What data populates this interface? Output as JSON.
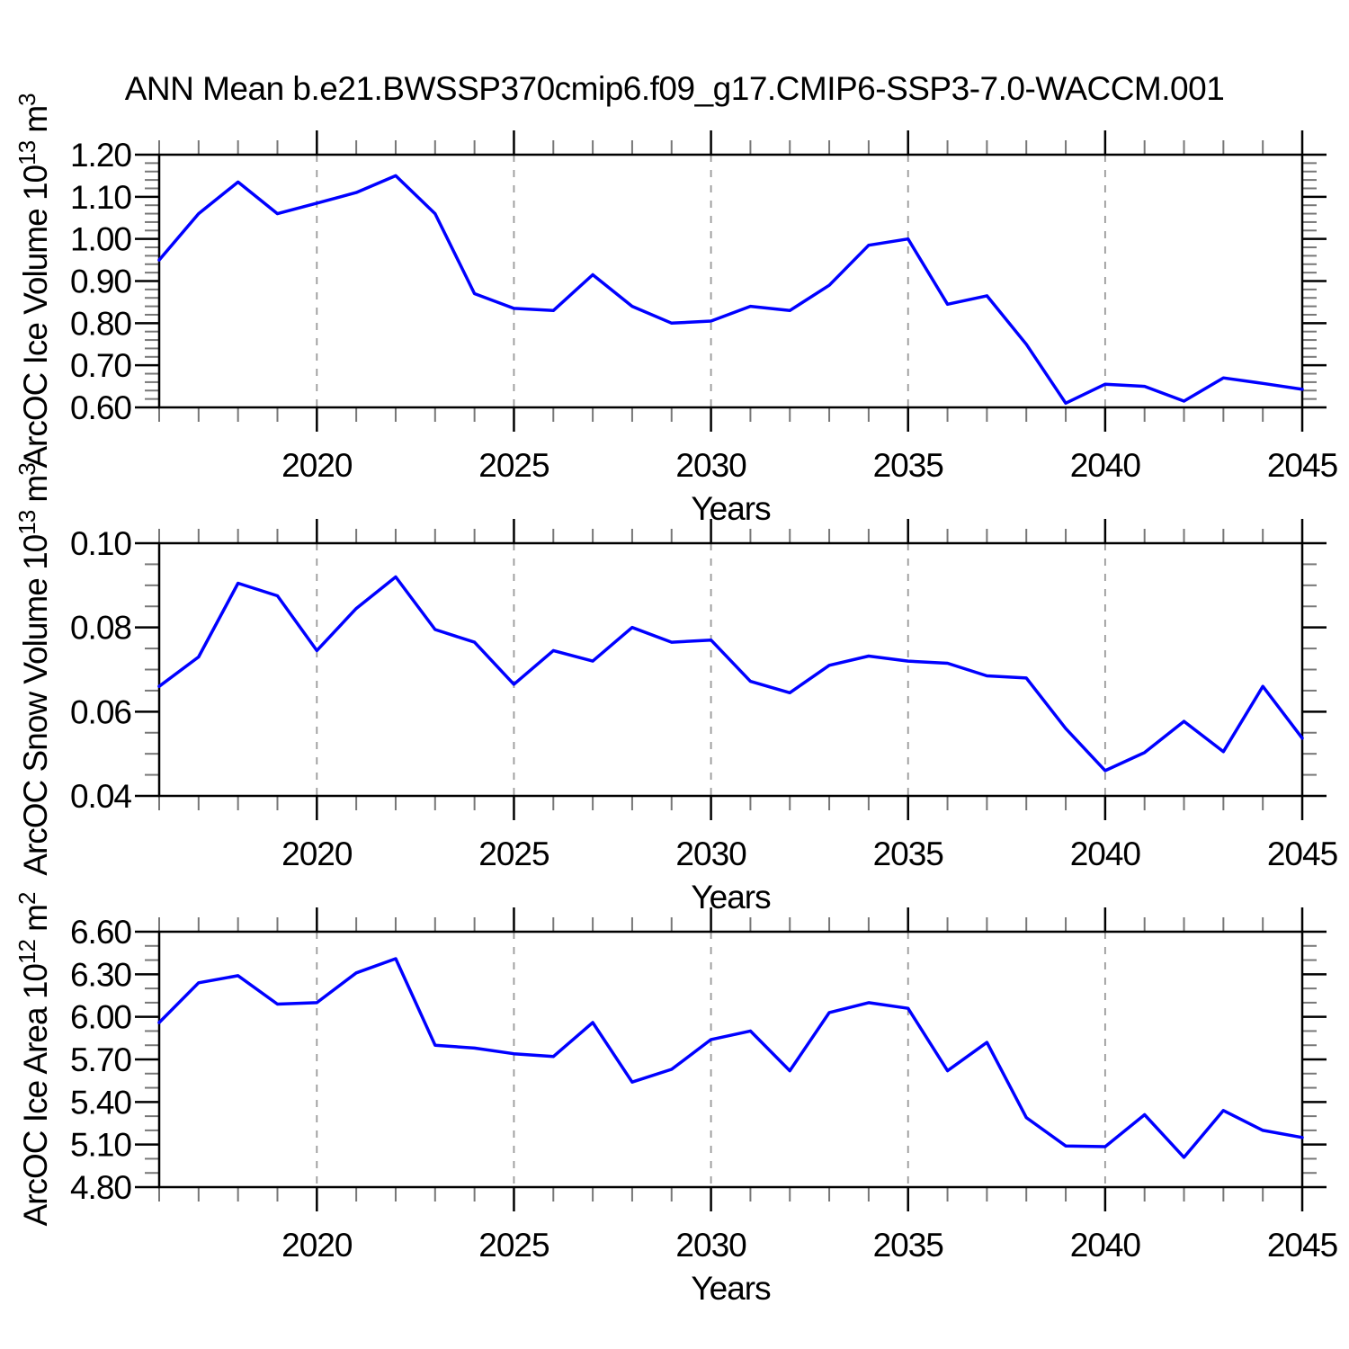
{
  "title": "ANN Mean b.e21.BWSSP370cmip6.f09_g17.CMIP6-SSP3-7.0-WACCM.001",
  "style": {
    "line_color": "#0000ff",
    "axis_color": "#000000",
    "minor_tick_color": "#777777",
    "grid_color": "#999999",
    "background": "#ffffff"
  },
  "x_axis": {
    "label": "Years",
    "range": [
      2016,
      2045
    ],
    "major_ticks": [
      2020,
      2025,
      2030,
      2035,
      2040,
      2045
    ],
    "minor_step": 1,
    "gridlines": [
      2020,
      2025,
      2030,
      2035,
      2040
    ]
  },
  "chart_data": [
    {
      "type": "line",
      "name": "arcoc-ice-volume",
      "xlabel": "Years",
      "ylabel": {
        "text": "ArcOC Ice Volume 10",
        "exp": "13",
        "unit": " m",
        "unit_exp": "3"
      },
      "ylim": [
        0.6,
        1.2
      ],
      "ytick_step": 0.1,
      "yminor_step": 0.02,
      "ytick_decimals": 2,
      "x": [
        2016,
        2017,
        2018,
        2019,
        2020,
        2021,
        2022,
        2023,
        2024,
        2025,
        2026,
        2027,
        2028,
        2029,
        2030,
        2031,
        2032,
        2033,
        2034,
        2035,
        2036,
        2037,
        2038,
        2039,
        2040,
        2041,
        2042,
        2043,
        2044,
        2045
      ],
      "values": [
        0.95,
        1.06,
        1.135,
        1.06,
        1.085,
        1.11,
        1.15,
        1.06,
        0.87,
        0.835,
        0.83,
        0.915,
        0.84,
        0.8,
        0.805,
        0.84,
        0.83,
        0.89,
        0.985,
        1.0,
        0.845,
        0.865,
        0.75,
        0.61,
        0.655,
        0.65,
        0.615,
        0.67,
        0.657,
        0.643
      ]
    },
    {
      "type": "line",
      "name": "arcoc-snow-volume",
      "xlabel": "Years",
      "ylabel": {
        "text": "ArcOC Snow Volume 10",
        "exp": "13",
        "unit": " m",
        "unit_exp": "3"
      },
      "ylim": [
        0.04,
        0.1
      ],
      "ytick_step": 0.02,
      "yminor_step": 0.005,
      "ytick_decimals": 2,
      "x": [
        2016,
        2017,
        2018,
        2019,
        2020,
        2021,
        2022,
        2023,
        2024,
        2025,
        2026,
        2027,
        2028,
        2029,
        2030,
        2031,
        2032,
        2033,
        2034,
        2035,
        2036,
        2037,
        2038,
        2039,
        2040,
        2041,
        2042,
        2043,
        2044,
        2045
      ],
      "values": [
        0.066,
        0.073,
        0.0905,
        0.0875,
        0.0745,
        0.0845,
        0.092,
        0.0795,
        0.0765,
        0.0665,
        0.0745,
        0.072,
        0.08,
        0.0765,
        0.077,
        0.0672,
        0.0645,
        0.071,
        0.0732,
        0.072,
        0.0715,
        0.0685,
        0.068,
        0.056,
        0.046,
        0.0503,
        0.0577,
        0.0505,
        0.066,
        0.0537
      ]
    },
    {
      "type": "line",
      "name": "arcoc-ice-area",
      "xlabel": "Years",
      "ylabel": {
        "text": "ArcOC Ice Area 10",
        "exp": "12",
        "unit": " m",
        "unit_exp": "2"
      },
      "ylim": [
        4.8,
        6.6
      ],
      "ytick_step": 0.3,
      "yminor_step": 0.1,
      "ytick_decimals": 2,
      "x": [
        2016,
        2017,
        2018,
        2019,
        2020,
        2021,
        2022,
        2023,
        2024,
        2025,
        2026,
        2027,
        2028,
        2029,
        2030,
        2031,
        2032,
        2033,
        2034,
        2035,
        2036,
        2037,
        2038,
        2039,
        2040,
        2041,
        2042,
        2043,
        2044,
        2045
      ],
      "values": [
        5.96,
        6.24,
        6.29,
        6.09,
        6.1,
        6.31,
        6.41,
        5.8,
        5.78,
        5.74,
        5.72,
        5.96,
        5.54,
        5.63,
        5.84,
        5.9,
        5.62,
        6.03,
        6.1,
        6.06,
        5.62,
        5.82,
        5.29,
        5.09,
        5.085,
        5.31,
        5.01,
        5.34,
        5.2,
        5.15
      ]
    }
  ]
}
